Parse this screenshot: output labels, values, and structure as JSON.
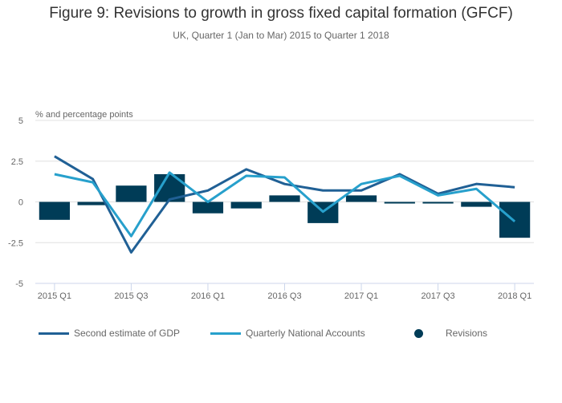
{
  "chart_data": {
    "type": "bar+line",
    "title": "Figure 9: Revisions to growth in gross fixed capital formation (GFCF)",
    "subtitle": "UK, Quarter 1 (Jan to Mar) 2015 to Quarter 1 2018",
    "ylabel": "% and percentage points",
    "xlabel": "",
    "ylim": [
      -5,
      5
    ],
    "yticks": [
      5,
      2.5,
      0,
      -2.5,
      -5
    ],
    "ytick_labels": [
      "5",
      "2.5",
      "0",
      "-2.5",
      "-5"
    ],
    "grid": true,
    "categories": [
      "2015 Q1",
      "2015 Q2",
      "2015 Q3",
      "2015 Q4",
      "2016 Q1",
      "2016 Q2",
      "2016 Q3",
      "2016 Q4",
      "2017 Q1",
      "2017 Q2",
      "2017 Q3",
      "2017 Q4",
      "2018 Q1"
    ],
    "xtick_labels": [
      "2015 Q1",
      "",
      "2015 Q3",
      "",
      "2016 Q1",
      "",
      "2016 Q3",
      "",
      "2017 Q1",
      "",
      "2017 Q3",
      "",
      "2018 Q1"
    ],
    "series": [
      {
        "name": "Second estimate of GDP",
        "type": "line",
        "color": "#206095",
        "values": [
          2.8,
          1.4,
          -3.1,
          0.15,
          0.7,
          2.0,
          1.1,
          0.7,
          0.7,
          1.7,
          0.5,
          1.1,
          0.9
        ]
      },
      {
        "name": "Quarterly National Accounts",
        "type": "line",
        "color": "#27a0cc",
        "values": [
          1.7,
          1.2,
          -2.1,
          1.8,
          0.0,
          1.6,
          1.5,
          -0.6,
          1.1,
          1.6,
          0.4,
          0.8,
          -1.2
        ]
      },
      {
        "name": "Revisions",
        "type": "bar",
        "color": "#003c57",
        "values": [
          -1.1,
          -0.2,
          1.0,
          1.7,
          -0.7,
          -0.4,
          0.4,
          -1.3,
          0.4,
          -0.1,
          -0.1,
          -0.3,
          -2.2
        ]
      }
    ],
    "legend_position": "bottom"
  },
  "colors": {
    "grid": "#e0e0e0",
    "axis": "#ccd6eb",
    "text": "#666666"
  }
}
